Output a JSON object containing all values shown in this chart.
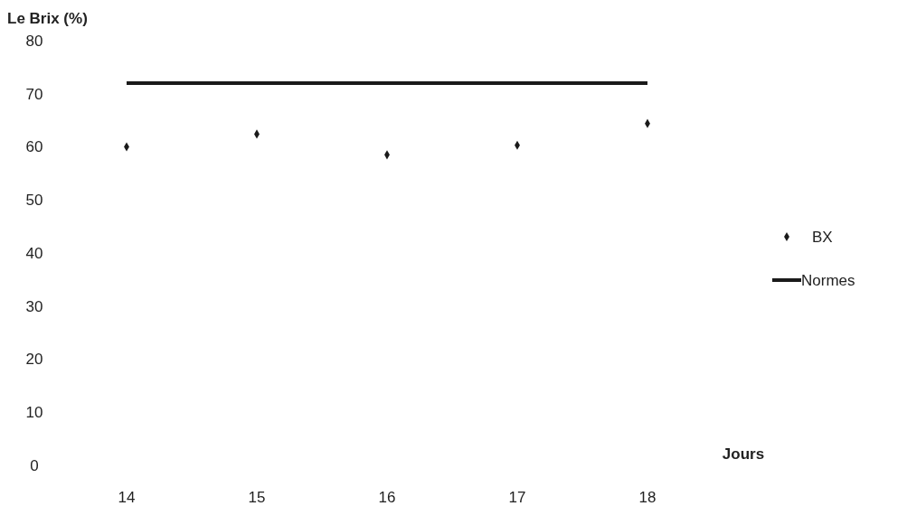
{
  "chart_data": {
    "type": "scatter",
    "ylabel": "Le Brix (%)",
    "xlabel": "Jours",
    "categories": [
      "14",
      "15",
      "16",
      "17",
      "18"
    ],
    "series": [
      {
        "name": "BX",
        "color": "#1a1a1a",
        "marker": "diamond",
        "values": [
          60,
          62.4,
          58.5,
          60.3,
          64.4
        ]
      },
      {
        "name": "Normes",
        "type": "line",
        "color": "#1a1a1a",
        "values": [
          72,
          72,
          72,
          72,
          72
        ]
      }
    ],
    "ylim": [
      0,
      80
    ],
    "yticks": [
      0,
      10,
      20,
      30,
      40,
      50,
      60,
      70,
      80
    ],
    "grid": false,
    "legend": "right"
  }
}
